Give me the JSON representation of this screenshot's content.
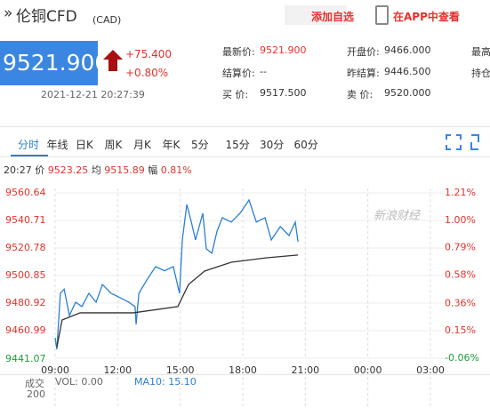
{
  "header": {
    "title": "伦铜CFD",
    "unit": "(CAD)",
    "add_watch": "添加自选",
    "open_app": "在APP中查看"
  },
  "quote": {
    "price": "9521.900",
    "change": "+75.400",
    "change_pct": "+0.80%",
    "time": "2021-12-21 20:27:39",
    "fields": [
      [
        "最新价:",
        "9521.900"
      ],
      [
        "开盘价:",
        "9466.000"
      ],
      [
        "最高",
        ""
      ],
      [
        "结算价:",
        "--"
      ],
      [
        "昨结算:",
        "9446.500"
      ],
      [
        "持仓",
        ""
      ],
      [
        "买 价:",
        "9517.500"
      ],
      [
        "卖 价:",
        "9520.000"
      ],
      [
        "",
        ""
      ]
    ]
  },
  "tabs": [
    "分时",
    "年线",
    "日K",
    "周K",
    "月K",
    "年K",
    "5分",
    "15分",
    "30分",
    "60分"
  ],
  "info": {
    "time": "20:27",
    "price_label": "价",
    "price": "9523.25",
    "avg_label": "均",
    "avg": "9515.89",
    "range_label": "幅",
    "range": "0.81%"
  },
  "watermark": "新浪财经",
  "volume": {
    "label": "成交",
    "vol": "VOL: 0.00",
    "ma": "MA10: 15.10",
    "tick": "200"
  },
  "chart_data": {
    "type": "line",
    "base": 9446.5,
    "up_color": "#e5322d",
    "down_color": "#1e9e3a",
    "x": [
      0,
      5,
      15,
      26,
      41,
      59,
      77,
      97,
      118,
      136,
      161,
      187,
      212,
      230,
      233,
      241,
      264,
      289,
      315,
      340,
      358,
      366,
      379,
      392,
      404,
      425,
      435,
      451,
      466,
      481,
      507,
      532,
      558,
      579,
      604,
      622,
      648,
      673,
      691,
      699
    ],
    "series": [
      {
        "name": "价",
        "color": "#2b7fd4",
        "values": [
          9455.9,
          9447.5,
          9488,
          9491,
          9472,
          9481.6,
          9478.4,
          9488,
          9481.6,
          9494.4,
          9488,
          9484.8,
          9481.6,
          9478.4,
          9465.5,
          9488,
          9497.7,
          9507.3,
          9504.3,
          9507.3,
          9488,
          9526.6,
          9552.3,
          9539.5,
          9526.6,
          9545.9,
          9520.2,
          9517,
          9533,
          9542.7,
          9539.5,
          9545.9,
          9555.5,
          9539.5,
          9542.7,
          9526.6,
          9536.3,
          9529.8,
          9539.5,
          9525.3
        ]
      },
      {
        "name": "均",
        "color": "#333333",
        "x": [
          5,
          20,
          72,
          225,
          353,
          384,
          430,
          507,
          609,
          699
        ],
        "values": [
          9449,
          9468.7,
          9473.9,
          9473.9,
          9478.4,
          9494.4,
          9504.1,
          9510.5,
          9513.7,
          9515.7
        ]
      }
    ],
    "xlim": [
      0,
      1080
    ],
    "xticks": [
      {
        "value": 0,
        "label": "09:00"
      },
      {
        "value": 180,
        "label": "12:00"
      },
      {
        "value": 360,
        "label": "15:00"
      },
      {
        "value": 540,
        "label": "18:00"
      },
      {
        "value": 720,
        "label": "21:00"
      },
      {
        "value": 900,
        "label": "00:00"
      },
      {
        "value": 1080,
        "label": "03:00"
      }
    ],
    "ylim": [
      9441.07,
      9560.64
    ],
    "yticks": [
      9441.07,
      9460.99,
      9480.92,
      9500.85,
      9520.78,
      9540.71,
      9560.64
    ],
    "y2lim": [
      -0.06,
      1.21
    ],
    "y2ticks": [
      {
        "value": -0.06,
        "label": "-0.06%"
      },
      {
        "value": 0.15,
        "label": "0.15%"
      },
      {
        "value": 0.36,
        "label": "0.36%"
      },
      {
        "value": 0.58,
        "label": "0.58%"
      },
      {
        "value": 0.79,
        "label": "0.79%"
      },
      {
        "value": 1.0,
        "label": "1.00%"
      },
      {
        "value": 1.21,
        "label": "1.21%"
      }
    ]
  }
}
